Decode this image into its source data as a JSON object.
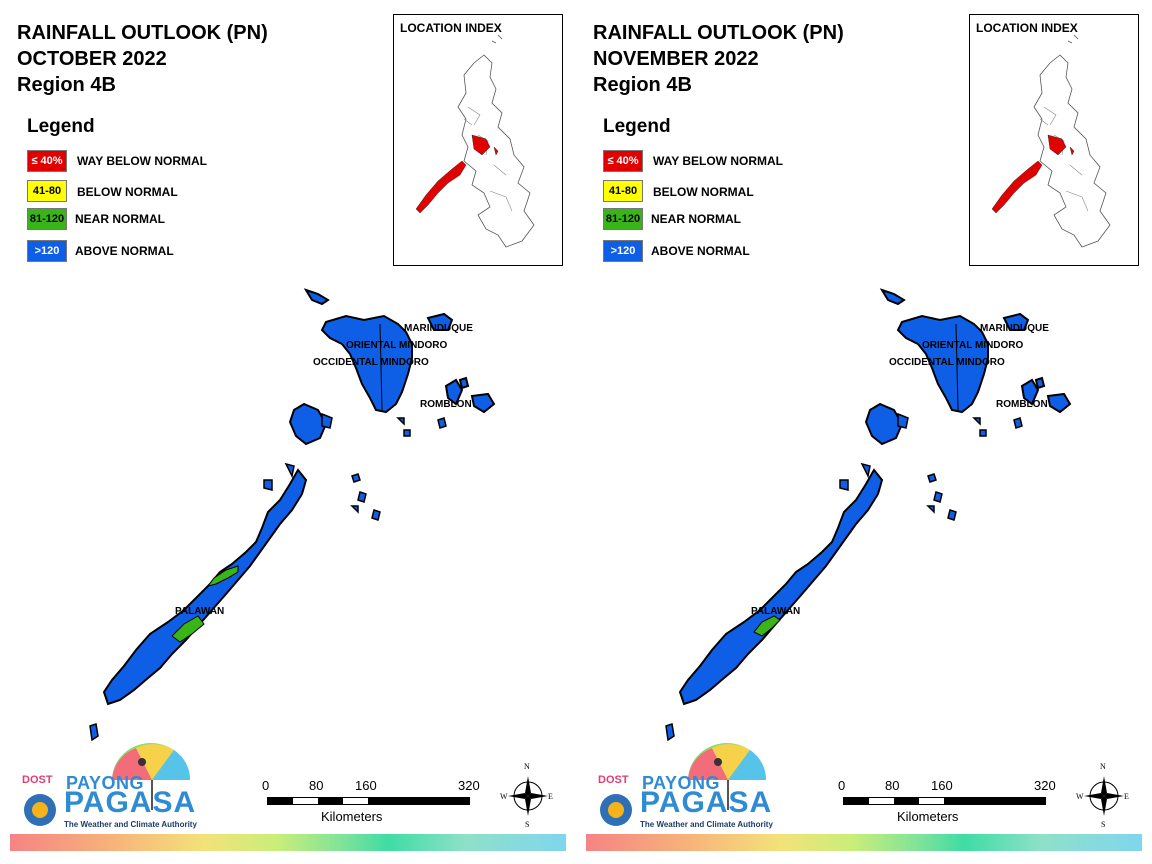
{
  "panels": [
    {
      "title_line1": "RAINFALL OUTLOOK (PN)",
      "title_line2": "OCTOBER 2022",
      "title_line3": "Region 4B",
      "palawan_level": "mixed"
    },
    {
      "title_line1": "RAINFALL OUTLOOK (PN)",
      "title_line2": "NOVEMBER 2022",
      "title_line3": "Region 4B",
      "palawan_level": "mostly-above"
    }
  ],
  "legend": {
    "title": "Legend",
    "items": [
      {
        "code": "≤ 40%",
        "label": "WAY BELOW NORMAL",
        "color": "#e00000",
        "text_color": "#ffffff"
      },
      {
        "code": "41-80",
        "label": "BELOW NORMAL",
        "color": "#ffff00",
        "text_color": "#000000"
      },
      {
        "code": "81-120",
        "label": "NEAR NORMAL",
        "color": "#39b518",
        "text_color": "#000000"
      },
      {
        "code": ">120",
        "label": "ABOVE NORMAL",
        "color": "#0f5fe6",
        "text_color": "#ffffff"
      }
    ]
  },
  "location_index": {
    "title": "LOCATION INDEX",
    "highlight_color": "#e00000"
  },
  "map": {
    "provinces": [
      "MARINDUQUE",
      "ORIENTAL MINDORO",
      "OCCIDENTAL MINDORO",
      "ROMBLON",
      "PALAWAN"
    ],
    "fill_above": "#0f5fe6",
    "fill_near": "#39b518"
  },
  "scale": {
    "ticks": [
      "0",
      "80",
      "160",
      "320"
    ],
    "unit": "Kilometers"
  },
  "compass": {
    "n": "N",
    "s": "S",
    "e": "E",
    "w": "W"
  },
  "logo": {
    "dost": "DOST",
    "payong": "PAYONG",
    "pagasa": "PAGASA",
    "tagline": "The Weather and Climate Authority"
  }
}
